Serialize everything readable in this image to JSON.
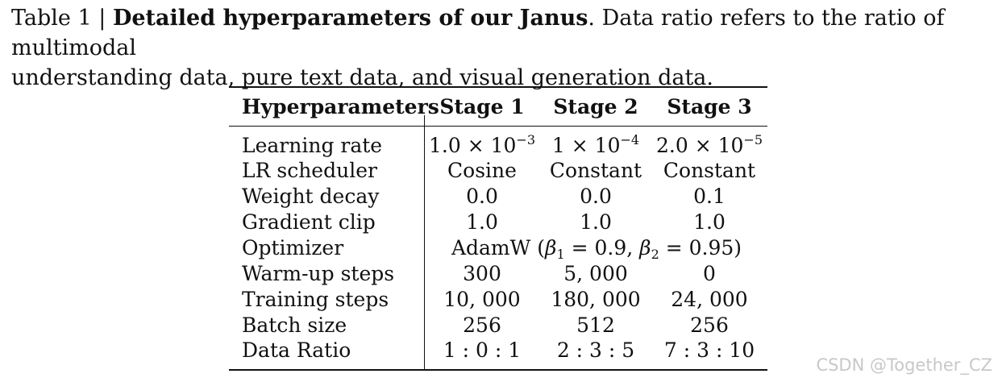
{
  "caption": {
    "label": "Table 1 |",
    "title": "Detailed hyperparameters of our Janus",
    "text_line1_rest": ". Data ratio refers to the ratio of multimodal",
    "text_line2": "understanding data, pure text data, and visual generation data."
  },
  "table": {
    "headers": [
      "Hyperparameters",
      "Stage 1",
      "Stage 2",
      "Stage 3"
    ],
    "rows": [
      {
        "label": "Learning rate",
        "s1_base": "1.0 × 10",
        "s1_exp": "−3",
        "s2_base": "1 × 10",
        "s2_exp": "−4",
        "s3_base": "2.0 × 10",
        "s3_exp": "−5"
      },
      {
        "label": "LR scheduler",
        "s1": "Cosine",
        "s2": "Constant",
        "s3": "Constant"
      },
      {
        "label": "Weight decay",
        "s1": "0.0",
        "s2": "0.0",
        "s3": "0.1"
      },
      {
        "label": "Gradient clip",
        "s1": "1.0",
        "s2": "1.0",
        "s3": "1.0"
      },
      {
        "label": "Optimizer",
        "span_prefix": "AdamW (",
        "beta": "β",
        "sub1": "1",
        "eq1": " = 0.9, ",
        "sub2": "2",
        "eq2": " = 0.95)"
      },
      {
        "label": "Warm-up steps",
        "s1": "300",
        "s2": "5, 000",
        "s3": "0"
      },
      {
        "label": "Training steps",
        "s1": "10, 000",
        "s2": "180, 000",
        "s3": "24, 000"
      },
      {
        "label": "Batch size",
        "s1": "256",
        "s2": "512",
        "s3": "256"
      },
      {
        "label": "Data Ratio",
        "s1": "1 : 0 : 1",
        "s2": "2 : 3 : 5",
        "s3": "7 : 3 : 10"
      }
    ]
  },
  "watermark": "CSDN @Together_CZ"
}
